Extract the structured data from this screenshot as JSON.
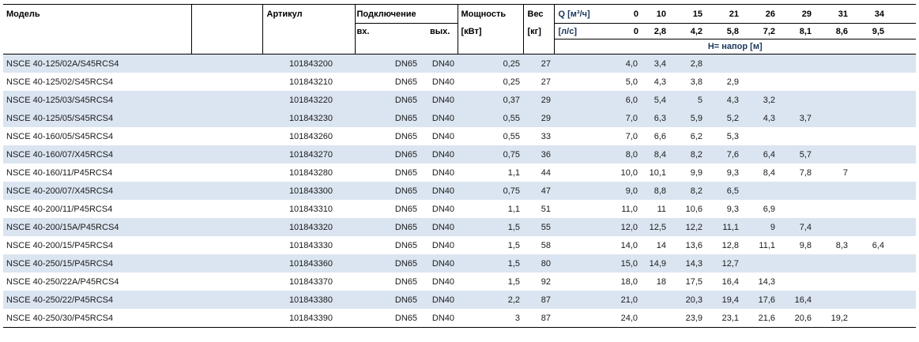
{
  "colors": {
    "stripe": "#dbe5f1",
    "header_accent": "#17365d",
    "border": "#000000"
  },
  "header": {
    "model": "Модель",
    "article": "Артикул",
    "connection": "Подключение",
    "conn_in": "вх.",
    "conn_out": "вых.",
    "power_line1": "Мощность",
    "power_line2": "[кВт]",
    "weight_line1": "Вес",
    "weight_line2": "[кг]",
    "q_label": "Q [м³/ч]",
    "q_zero": "0",
    "ls_label": "[л/с]",
    "ls_zero": "0",
    "flow_m3h": [
      "10",
      "15",
      "21",
      "26",
      "29",
      "31",
      "34"
    ],
    "flow_ls": [
      "2,8",
      "4,2",
      "5,8",
      "7,2",
      "8,1",
      "8,6",
      "9,5"
    ],
    "head_label": "Н= напор [м]"
  },
  "rows": [
    {
      "model": "NSCE 40-125/02A/S45RCS4",
      "article": "101843200",
      "conn_in": "DN65",
      "conn_out": "DN40",
      "power": "0,25",
      "weight": "27",
      "heads": [
        "4,0",
        "3,4",
        "2,8",
        "",
        "",
        "",
        "",
        ""
      ],
      "shaded": true
    },
    {
      "model": "NSCE 40-125/02/S45RCS4",
      "article": "101843210",
      "conn_in": "DN65",
      "conn_out": "DN40",
      "power": "0,25",
      "weight": "27",
      "heads": [
        "5,0",
        "4,3",
        "3,8",
        "2,9",
        "",
        "",
        "",
        ""
      ],
      "shaded": false
    },
    {
      "model": "NSCE 40-125/03/S45RCS4",
      "article": "101843220",
      "conn_in": "DN65",
      "conn_out": "DN40",
      "power": "0,37",
      "weight": "29",
      "heads": [
        "6,0",
        "5,4",
        "5",
        "4,3",
        "3,2",
        "",
        "",
        ""
      ],
      "shaded": true
    },
    {
      "model": "NSCE 40-125/05/S45RCS4",
      "article": "101843230",
      "conn_in": "DN65",
      "conn_out": "DN40",
      "power": "0,55",
      "weight": "29",
      "heads": [
        "7,0",
        "6,3",
        "5,9",
        "5,2",
        "4,3",
        "3,7",
        "",
        ""
      ],
      "shaded": true
    },
    {
      "model": "NSCE 40-160/05/S45RCS4",
      "article": "101843260",
      "conn_in": "DN65",
      "conn_out": "DN40",
      "power": "0,55",
      "weight": "33",
      "heads": [
        "7,0",
        "6,6",
        "6,2",
        "5,3",
        "",
        "",
        "",
        ""
      ],
      "shaded": false
    },
    {
      "model": "NSCE 40-160/07/X45RCS4",
      "article": "101843270",
      "conn_in": "DN65",
      "conn_out": "DN40",
      "power": "0,75",
      "weight": "36",
      "heads": [
        "8,0",
        "8,4",
        "8,2",
        "7,6",
        "6,4",
        "5,7",
        "",
        ""
      ],
      "shaded": true
    },
    {
      "model": "NSCE 40-160/11/P45RCS4",
      "article": "101843280",
      "conn_in": "DN65",
      "conn_out": "DN40",
      "power": "1,1",
      "weight": "44",
      "heads": [
        "10,0",
        "10,1",
        "9,9",
        "9,3",
        "8,4",
        "7,8",
        "7",
        ""
      ],
      "shaded": false
    },
    {
      "model": "NSCE 40-200/07/X45RCS4",
      "article": "101843300",
      "conn_in": "DN65",
      "conn_out": "DN40",
      "power": "0,75",
      "weight": "47",
      "heads": [
        "9,0",
        "8,8",
        "8,2",
        "6,5",
        "",
        "",
        "",
        ""
      ],
      "shaded": true
    },
    {
      "model": "NSCE 40-200/11/P45RCS4",
      "article": "101843310",
      "conn_in": "DN65",
      "conn_out": "DN40",
      "power": "1,1",
      "weight": "51",
      "heads": [
        "11,0",
        "11",
        "10,6",
        "9,3",
        "6,9",
        "",
        "",
        ""
      ],
      "shaded": false
    },
    {
      "model": "NSCE 40-200/15A/P45RCS4",
      "article": "101843320",
      "conn_in": "DN65",
      "conn_out": "DN40",
      "power": "1,5",
      "weight": "55",
      "heads": [
        "12,0",
        "12,5",
        "12,2",
        "11,1",
        "9",
        "7,4",
        "",
        ""
      ],
      "shaded": true
    },
    {
      "model": "NSCE 40-200/15/P45RCS4",
      "article": "101843330",
      "conn_in": "DN65",
      "conn_out": "DN40",
      "power": "1,5",
      "weight": "58",
      "heads": [
        "14,0",
        "14",
        "13,6",
        "12,8",
        "11,1",
        "9,8",
        "8,3",
        "6,4"
      ],
      "shaded": false
    },
    {
      "model": "NSCE 40-250/15/P45RCS4",
      "article": "101843360",
      "conn_in": "DN65",
      "conn_out": "DN40",
      "power": "1,5",
      "weight": "80",
      "heads": [
        "15,0",
        "14,9",
        "14,3",
        "12,7",
        "",
        "",
        "",
        ""
      ],
      "shaded": true
    },
    {
      "model": "NSCE 40-250/22A/P45RCS4",
      "article": "101843370",
      "conn_in": "DN65",
      "conn_out": "DN40",
      "power": "1,5",
      "weight": "92",
      "heads": [
        "18,0",
        "18",
        "17,5",
        "16,4",
        "14,3",
        "",
        "",
        ""
      ],
      "shaded": false
    },
    {
      "model": "NSCE 40-250/22/P45RCS4",
      "article": "101843380",
      "conn_in": "DN65",
      "conn_out": "DN40",
      "power": "2,2",
      "weight": "87",
      "heads": [
        "21,0",
        "",
        "20,3",
        "19,4",
        "17,6",
        "16,4",
        "",
        ""
      ],
      "shaded": true
    },
    {
      "model": "NSCE 40-250/30/P45RCS4",
      "article": "101843390",
      "conn_in": "DN65",
      "conn_out": "DN40",
      "power": "3",
      "weight": "87",
      "heads": [
        "24,0",
        "",
        "23,9",
        "23,1",
        "21,6",
        "20,6",
        "19,2",
        ""
      ],
      "shaded": false
    }
  ]
}
